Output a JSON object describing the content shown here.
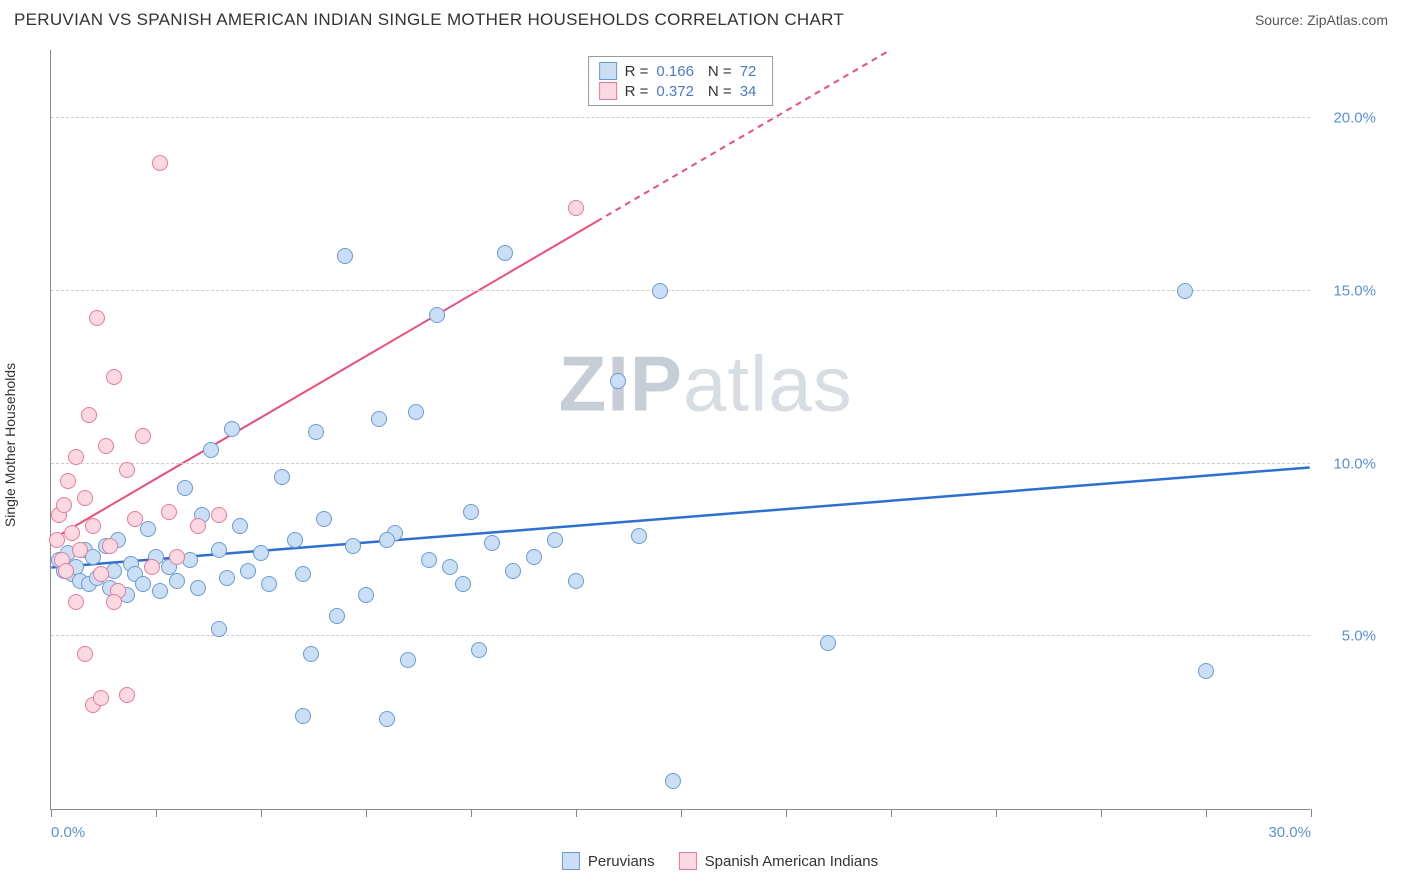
{
  "header": {
    "title": "PERUVIAN VS SPANISH AMERICAN INDIAN SINGLE MOTHER HOUSEHOLDS CORRELATION CHART",
    "source": "Source: ZipAtlas.com"
  },
  "chart": {
    "type": "scatter",
    "ylabel": "Single Mother Households",
    "xlim": [
      0,
      30
    ],
    "ylim": [
      0,
      22
    ],
    "background_color": "#ffffff",
    "grid_color": "#cccccc",
    "axis_color": "#888888",
    "marker_radius": 8,
    "marker_border_width": 1.2,
    "yticks": [
      {
        "value": 5,
        "label": "5.0%"
      },
      {
        "value": 10,
        "label": "10.0%"
      },
      {
        "value": 15,
        "label": "15.0%"
      },
      {
        "value": 20,
        "label": "20.0%"
      }
    ],
    "xticks": [
      {
        "value": 0,
        "label": "0.0%"
      },
      {
        "value": 2.5,
        "label": ""
      },
      {
        "value": 5,
        "label": ""
      },
      {
        "value": 7.5,
        "label": ""
      },
      {
        "value": 10,
        "label": ""
      },
      {
        "value": 12.5,
        "label": ""
      },
      {
        "value": 15,
        "label": ""
      },
      {
        "value": 17.5,
        "label": ""
      },
      {
        "value": 20,
        "label": ""
      },
      {
        "value": 22.5,
        "label": ""
      },
      {
        "value": 25,
        "label": ""
      },
      {
        "value": 27.5,
        "label": ""
      },
      {
        "value": 30,
        "label": "30.0%"
      }
    ],
    "watermark": {
      "bold": "ZIP",
      "rest": "atlas"
    },
    "series": [
      {
        "name": "Peruvians",
        "fill_color": "#cadff5",
        "border_color": "#6b9bd1",
        "line_color": "#2e6fd0",
        "line_width": 2.5,
        "trend": {
          "x1": 0,
          "y1": 7.0,
          "x2": 30,
          "y2": 9.9,
          "dash_from_x": null
        },
        "stats": {
          "r_label": "R =",
          "r": "0.166",
          "n_label": "N =",
          "n": "72"
        },
        "points": [
          [
            0.2,
            7.2
          ],
          [
            0.3,
            6.9
          ],
          [
            0.4,
            7.4
          ],
          [
            0.5,
            6.8
          ],
          [
            0.6,
            7.0
          ],
          [
            0.7,
            6.6
          ],
          [
            0.8,
            7.5
          ],
          [
            0.9,
            6.5
          ],
          [
            1.0,
            7.3
          ],
          [
            1.1,
            6.7
          ],
          [
            1.3,
            7.6
          ],
          [
            1.4,
            6.4
          ],
          [
            1.5,
            6.9
          ],
          [
            1.6,
            7.8
          ],
          [
            1.8,
            6.2
          ],
          [
            1.9,
            7.1
          ],
          [
            2.0,
            6.8
          ],
          [
            2.2,
            6.5
          ],
          [
            2.3,
            8.1
          ],
          [
            2.5,
            7.3
          ],
          [
            2.6,
            6.3
          ],
          [
            2.8,
            7.0
          ],
          [
            3.0,
            6.6
          ],
          [
            3.2,
            9.3
          ],
          [
            3.3,
            7.2
          ],
          [
            3.5,
            6.4
          ],
          [
            3.6,
            8.5
          ],
          [
            3.8,
            10.4
          ],
          [
            4.0,
            7.5
          ],
          [
            4.2,
            6.7
          ],
          [
            4.3,
            11.0
          ],
          [
            4.5,
            8.2
          ],
          [
            4.7,
            6.9
          ],
          [
            5.0,
            7.4
          ],
          [
            5.2,
            6.5
          ],
          [
            5.5,
            9.6
          ],
          [
            5.8,
            7.8
          ],
          [
            6.0,
            6.8
          ],
          [
            6.2,
            4.5
          ],
          [
            6.3,
            10.9
          ],
          [
            6.5,
            8.4
          ],
          [
            6.8,
            5.6
          ],
          [
            7.0,
            16.0
          ],
          [
            7.2,
            7.6
          ],
          [
            7.5,
            6.2
          ],
          [
            7.8,
            11.3
          ],
          [
            8.0,
            2.6
          ],
          [
            8.2,
            8.0
          ],
          [
            8.5,
            4.3
          ],
          [
            8.7,
            11.5
          ],
          [
            9.0,
            7.2
          ],
          [
            9.2,
            14.3
          ],
          [
            9.5,
            7.0
          ],
          [
            9.8,
            6.5
          ],
          [
            10.0,
            8.6
          ],
          [
            10.2,
            4.6
          ],
          [
            10.5,
            7.7
          ],
          [
            10.8,
            16.1
          ],
          [
            11.0,
            6.9
          ],
          [
            11.5,
            7.3
          ],
          [
            12.0,
            7.8
          ],
          [
            12.5,
            6.6
          ],
          [
            13.5,
            12.4
          ],
          [
            14.0,
            7.9
          ],
          [
            14.5,
            15.0
          ],
          [
            14.8,
            0.8
          ],
          [
            18.5,
            4.8
          ],
          [
            27.0,
            15.0
          ],
          [
            27.5,
            4.0
          ],
          [
            6.0,
            2.7
          ],
          [
            8.0,
            7.8
          ],
          [
            4.0,
            5.2
          ]
        ]
      },
      {
        "name": "Spanish American Indians",
        "fill_color": "#fcd8e1",
        "border_color": "#e77a9a",
        "line_color": "#e94f7a",
        "line_width": 2,
        "trend": {
          "x1": 0,
          "y1": 7.8,
          "x2": 20,
          "y2": 22,
          "dash_from_x": 13
        },
        "stats": {
          "r_label": "R =",
          "r": "0.372",
          "n_label": "N =",
          "n": "34"
        },
        "points": [
          [
            0.15,
            7.8
          ],
          [
            0.2,
            8.5
          ],
          [
            0.25,
            7.2
          ],
          [
            0.3,
            8.8
          ],
          [
            0.35,
            6.9
          ],
          [
            0.4,
            9.5
          ],
          [
            0.5,
            8.0
          ],
          [
            0.6,
            10.2
          ],
          [
            0.7,
            7.5
          ],
          [
            0.8,
            9.0
          ],
          [
            0.9,
            11.4
          ],
          [
            1.0,
            8.2
          ],
          [
            1.1,
            14.2
          ],
          [
            1.2,
            6.8
          ],
          [
            1.3,
            10.5
          ],
          [
            1.4,
            7.6
          ],
          [
            1.5,
            12.5
          ],
          [
            1.6,
            6.3
          ],
          [
            1.8,
            9.8
          ],
          [
            2.0,
            8.4
          ],
          [
            2.2,
            10.8
          ],
          [
            2.4,
            7.0
          ],
          [
            2.6,
            18.7
          ],
          [
            2.8,
            8.6
          ],
          [
            3.0,
            7.3
          ],
          [
            1.0,
            3.0
          ],
          [
            1.2,
            3.2
          ],
          [
            1.8,
            3.3
          ],
          [
            0.8,
            4.5
          ],
          [
            1.5,
            6.0
          ],
          [
            3.5,
            8.2
          ],
          [
            4.0,
            8.5
          ],
          [
            12.5,
            17.4
          ],
          [
            0.6,
            6.0
          ]
        ]
      }
    ]
  }
}
